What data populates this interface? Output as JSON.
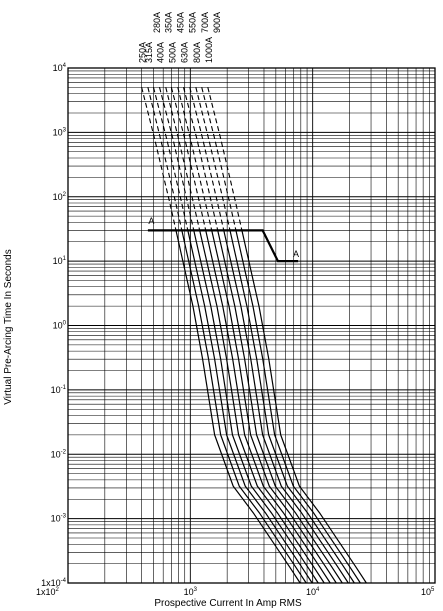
{
  "chart_data": {
    "type": "line",
    "title": "",
    "xlabel": "Prospective Current In Amp RMS",
    "ylabel": "Virtual Pre-Arcing Time In Seconds",
    "x_scale": "log",
    "y_scale": "log",
    "xlim": [
      100,
      100000
    ],
    "ylim": [
      0.0001,
      10000
    ],
    "grid": true,
    "x_ticks": [
      {
        "value": 100,
        "base": "1x10",
        "exp": "2"
      },
      {
        "value": 1000,
        "base": "10",
        "exp": "3"
      },
      {
        "value": 10000,
        "base": "10",
        "exp": "4"
      },
      {
        "value": 100000,
        "base": "10",
        "exp": "5"
      }
    ],
    "y_ticks": [
      {
        "value": 10000,
        "base": "10",
        "exp": "4"
      },
      {
        "value": 1000,
        "base": "10",
        "exp": "3"
      },
      {
        "value": 100,
        "base": "10",
        "exp": "2"
      },
      {
        "value": 10,
        "base": "10",
        "exp": "1"
      },
      {
        "value": 1,
        "base": "10",
        "exp": "0"
      },
      {
        "value": 0.1,
        "base": "10",
        "exp": "-1"
      },
      {
        "value": 0.01,
        "base": "10",
        "exp": "-2"
      },
      {
        "value": 0.001,
        "base": "10",
        "exp": "-3"
      },
      {
        "value": 0.0001,
        "base": "1x10",
        "exp": "-4"
      }
    ],
    "series": [
      {
        "name": "250A",
        "points": [
          [
            400,
            5000
          ],
          [
            510,
            800
          ],
          [
            680,
            80
          ],
          [
            1050,
            2
          ],
          [
            1260,
            0.3
          ],
          [
            1580,
            0.02
          ],
          [
            2240,
            0.0032
          ],
          [
            3300,
            0.0012
          ],
          [
            6450,
            0.00018
          ],
          [
            7900,
            0.0001
          ]
        ]
      },
      {
        "name": "315A",
        "points": [
          [
            450,
            5000
          ],
          [
            570,
            800
          ],
          [
            760,
            80
          ],
          [
            1170,
            2
          ],
          [
            1410,
            0.3
          ],
          [
            1770,
            0.02
          ],
          [
            2510,
            0.0032
          ],
          [
            3700,
            0.0012
          ],
          [
            7220,
            0.00018
          ],
          [
            8850,
            0.0001
          ]
        ]
      },
      {
        "name": "350A",
        "points": [
          [
            500,
            5000
          ],
          [
            640,
            800
          ],
          [
            850,
            80
          ],
          [
            1310,
            2
          ],
          [
            1580,
            0.3
          ],
          [
            1980,
            0.02
          ],
          [
            2810,
            0.0032
          ],
          [
            4150,
            0.0012
          ],
          [
            8090,
            0.00018
          ],
          [
            9910,
            0.0001
          ]
        ]
      },
      {
        "name": "400A",
        "points": [
          [
            560,
            5000
          ],
          [
            720,
            800
          ],
          [
            950,
            80
          ],
          [
            1470,
            2
          ],
          [
            1770,
            0.3
          ],
          [
            2210,
            0.02
          ],
          [
            3150,
            0.0032
          ],
          [
            4640,
            0.0012
          ],
          [
            9060,
            0.00018
          ],
          [
            11100,
            0.0001
          ]
        ]
      },
      {
        "name": "450A",
        "points": [
          [
            630,
            5000
          ],
          [
            800,
            800
          ],
          [
            1060,
            80
          ],
          [
            1650,
            2
          ],
          [
            1980,
            0.3
          ],
          [
            2480,
            0.02
          ],
          [
            3530,
            0.0032
          ],
          [
            5200,
            0.0012
          ],
          [
            10150,
            0.00018
          ],
          [
            12430,
            0.0001
          ]
        ]
      },
      {
        "name": "500A",
        "points": [
          [
            700,
            5000
          ],
          [
            900,
            800
          ],
          [
            1190,
            80
          ],
          [
            1840,
            2
          ],
          [
            2220,
            0.3
          ],
          [
            2780,
            0.02
          ],
          [
            3950,
            0.0032
          ],
          [
            5820,
            0.0012
          ],
          [
            11370,
            0.00018
          ],
          [
            13920,
            0.0001
          ]
        ]
      },
      {
        "name": "550A",
        "points": [
          [
            790,
            5000
          ],
          [
            1000,
            800
          ],
          [
            1330,
            80
          ],
          [
            2070,
            2
          ],
          [
            2480,
            0.3
          ],
          [
            3110,
            0.02
          ],
          [
            4420,
            0.0032
          ],
          [
            6520,
            0.0012
          ],
          [
            12730,
            0.00018
          ],
          [
            15590,
            0.0001
          ]
        ]
      },
      {
        "name": "630A",
        "points": [
          [
            880,
            5000
          ],
          [
            1130,
            800
          ],
          [
            1490,
            80
          ],
          [
            2310,
            2
          ],
          [
            2780,
            0.3
          ],
          [
            3480,
            0.02
          ],
          [
            4950,
            0.0032
          ],
          [
            7300,
            0.0012
          ],
          [
            14260,
            0.00018
          ],
          [
            17460,
            0.0001
          ]
        ]
      },
      {
        "name": "700A",
        "points": [
          [
            990,
            5000
          ],
          [
            1260,
            800
          ],
          [
            1670,
            80
          ],
          [
            2590,
            2
          ],
          [
            3120,
            0.3
          ],
          [
            3900,
            0.02
          ],
          [
            5540,
            0.0032
          ],
          [
            8180,
            0.0012
          ],
          [
            15970,
            0.00018
          ],
          [
            19560,
            0.0001
          ]
        ]
      },
      {
        "name": "800A",
        "points": [
          [
            1110,
            5000
          ],
          [
            1410,
            800
          ],
          [
            1880,
            80
          ],
          [
            2900,
            2
          ],
          [
            3490,
            0.3
          ],
          [
            4370,
            0.02
          ],
          [
            6210,
            0.0032
          ],
          [
            9160,
            0.0012
          ],
          [
            17890,
            0.00018
          ],
          [
            21910,
            0.0001
          ]
        ]
      },
      {
        "name": "900A",
        "points": [
          [
            1240,
            5000
          ],
          [
            1580,
            800
          ],
          [
            2100,
            80
          ],
          [
            3250,
            2
          ],
          [
            3910,
            0.3
          ],
          [
            4890,
            0.02
          ],
          [
            6950,
            0.0032
          ],
          [
            10260,
            0.0012
          ],
          [
            20030,
            0.00018
          ],
          [
            24530,
            0.0001
          ]
        ]
      },
      {
        "name": "1000A",
        "points": [
          [
            1390,
            5000
          ],
          [
            1770,
            800
          ],
          [
            2350,
            80
          ],
          [
            3640,
            2
          ],
          [
            4380,
            0.3
          ],
          [
            5480,
            0.02
          ],
          [
            7790,
            0.0032
          ],
          [
            11490,
            0.0012
          ],
          [
            22440,
            0.00018
          ],
          [
            27480,
            0.0001
          ]
        ]
      }
    ],
    "dashed_above_seconds": 30,
    "rating_labels": [
      {
        "top": "250A",
        "bottom": "",
        "x": 400
      },
      {
        "top": "280A",
        "bottom": "315A",
        "x": 450
      },
      {
        "top": "350A",
        "bottom": "400A",
        "x": 560
      },
      {
        "top": "450A",
        "bottom": "500A",
        "x": 700
      },
      {
        "top": "550A",
        "bottom": "630A",
        "x": 880
      },
      {
        "top": "700A",
        "bottom": "800A",
        "x": 1110
      },
      {
        "top": "900A",
        "bottom": "1000A",
        "x": 1390
      }
    ],
    "annotations": [
      {
        "text": "A",
        "x": 480,
        "y": 38
      },
      {
        "text": "A",
        "x": 7300,
        "y": 11.5
      }
    ],
    "boundary_line": [
      [
        450,
        30
      ],
      [
        3900,
        30
      ],
      [
        5200,
        10
      ],
      [
        7600,
        10
      ]
    ]
  }
}
